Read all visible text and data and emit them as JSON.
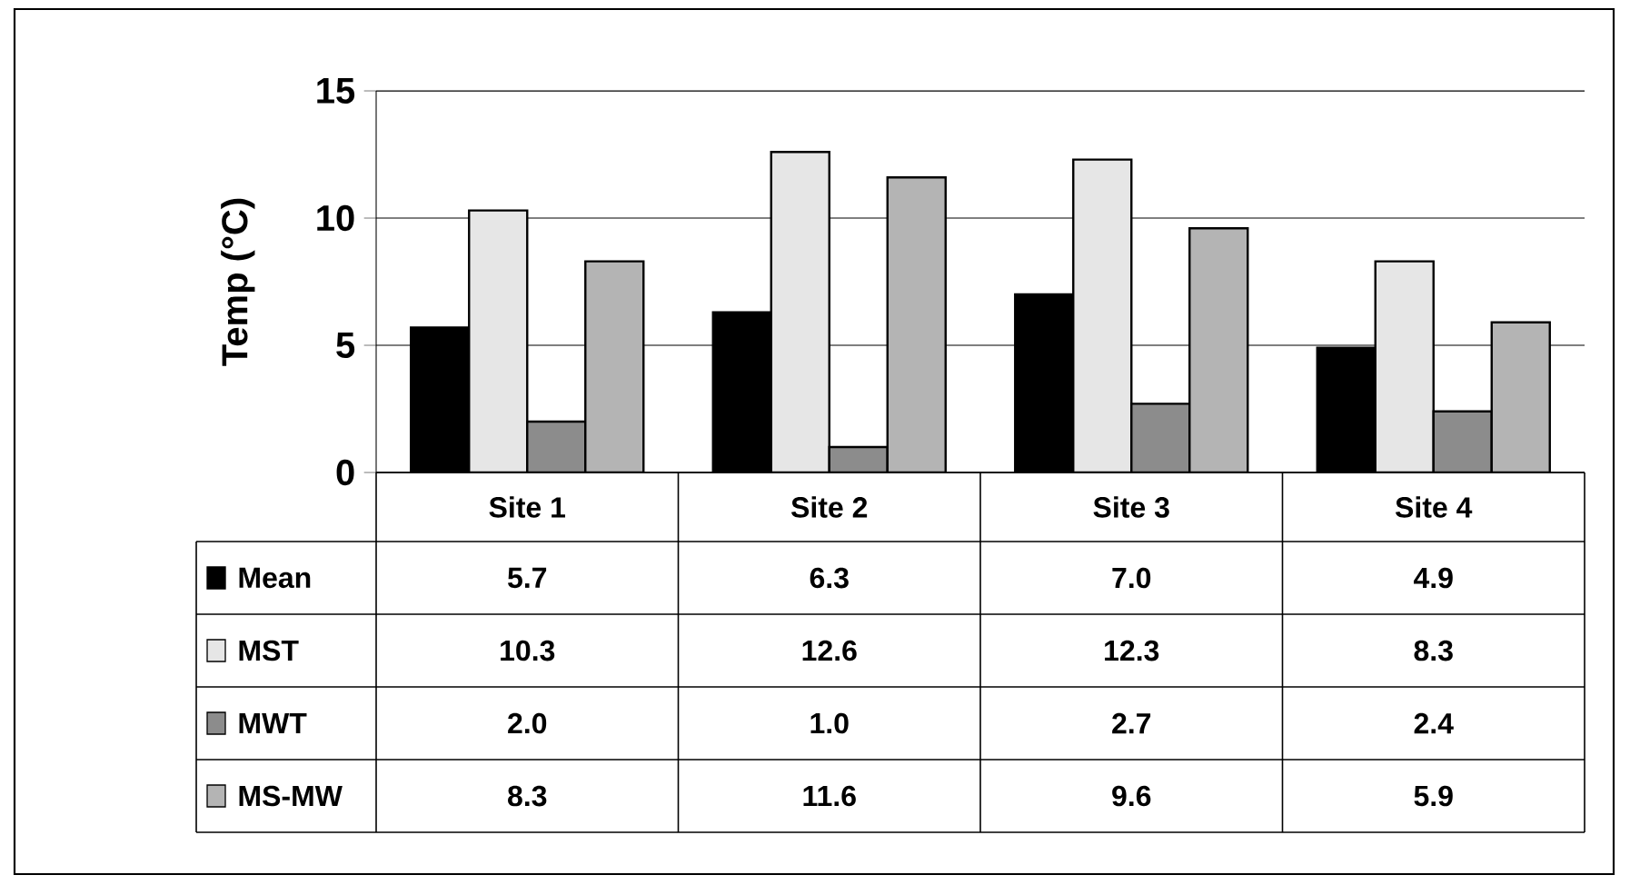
{
  "chart_data": {
    "type": "bar",
    "ylabel": "Temp (°C)",
    "categories": [
      "Site 1",
      "Site 2",
      "Site 3",
      "Site 4"
    ],
    "series": [
      {
        "name": "Mean",
        "color": "#000000",
        "values": [
          5.7,
          6.3,
          7.0,
          4.9
        ],
        "value_labels": [
          "5.7",
          "6.3",
          "7.0",
          "4.9"
        ]
      },
      {
        "name": "MST",
        "color": "#e6e6e6",
        "values": [
          10.3,
          12.6,
          12.3,
          8.3
        ],
        "value_labels": [
          "10.3",
          "12.6",
          "12.3",
          "8.3"
        ]
      },
      {
        "name": "MWT",
        "color": "#8c8c8c",
        "values": [
          2.0,
          1.0,
          2.7,
          2.4
        ],
        "value_labels": [
          "2.0",
          "1.0",
          "2.7",
          "2.4"
        ]
      },
      {
        "name": "MS-MW",
        "color": "#b4b4b4",
        "values": [
          8.3,
          11.6,
          9.6,
          5.9
        ],
        "value_labels": [
          "8.3",
          "11.6",
          "9.6",
          "5.9"
        ]
      }
    ],
    "ylim": [
      0,
      15
    ],
    "yticks": [
      0,
      5,
      10,
      15
    ],
    "grid": "y",
    "legend": "bottom"
  }
}
